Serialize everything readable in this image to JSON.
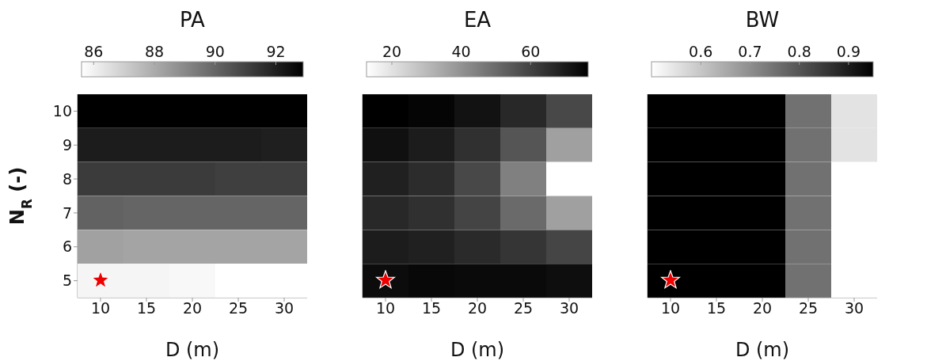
{
  "chart_data": [
    {
      "type": "heatmap",
      "title": "PA",
      "xlabel": "D (m)",
      "ylabel": "N$_{R}$ (-)",
      "categories": [
        "10",
        "15",
        "20",
        "25",
        "30"
      ],
      "y_categories": [
        "10",
        "9",
        "8",
        "7",
        "6",
        "5"
      ],
      "cells": [
        [
          92.9,
          92.9,
          92.9,
          92.9,
          92.9
        ],
        [
          92.1,
          92.1,
          92.1,
          92.1,
          92.0
        ],
        [
          91.2,
          91.2,
          91.2,
          91.1,
          91.1
        ],
        [
          90.1,
          90.0,
          90.0,
          90.0,
          90.0
        ],
        [
          88.3,
          88.2,
          88.2,
          88.2,
          88.2
        ],
        [
          85.9,
          85.9,
          85.8,
          85.6,
          85.6
        ]
      ],
      "clim": [
        85.6,
        92.9
      ],
      "cticks": [
        86,
        88,
        90,
        92
      ]
    },
    {
      "type": "heatmap",
      "title": "EA",
      "xlabel": "D (m)",
      "categories": [
        "10",
        "15",
        "20",
        "25",
        "30"
      ],
      "y_categories": [
        "10",
        "9",
        "8",
        "7",
        "6",
        "5"
      ],
      "tick_labels": "x",
      "cells": [
        [
          76.6,
          75.3,
          72.1,
          66.6,
          58.6
        ],
        [
          72.6,
          69.6,
          64.6,
          55.3,
          36.5
        ],
        [
          68.6,
          65.6,
          58.6,
          44.5,
          12.7
        ],
        [
          66.6,
          64.6,
          59.6,
          50.0,
          36.5
        ],
        [
          69.6,
          68.6,
          66.1,
          63.3,
          59.3
        ],
        [
          73.6,
          74.6,
          74.1,
          74.1,
          73.1
        ]
      ],
      "clim": [
        12.7,
        76.6
      ],
      "cticks": [
        20,
        40,
        60
      ]
    },
    {
      "type": "heatmap",
      "title": "BW",
      "xlabel": "D (m)",
      "categories": [
        "10",
        "15",
        "20",
        "25",
        "30"
      ],
      "y_categories": [
        "10",
        "9",
        "8",
        "7",
        "6",
        "5"
      ],
      "tick_labels": "x",
      "cells": [
        [
          0.95,
          0.95,
          0.95,
          0.75,
          0.55
        ],
        [
          0.95,
          0.95,
          0.95,
          0.75,
          0.55
        ],
        [
          0.95,
          0.95,
          0.95,
          0.75,
          0.5
        ],
        [
          0.95,
          0.95,
          0.95,
          0.75,
          0.5
        ],
        [
          0.95,
          0.95,
          0.95,
          0.75,
          0.5
        ],
        [
          0.95,
          0.95,
          0.95,
          0.75,
          0.5
        ]
      ],
      "clim": [
        0.5,
        0.95
      ],
      "cticks": [
        0.6,
        0.7,
        0.8,
        0.9
      ]
    }
  ]
}
